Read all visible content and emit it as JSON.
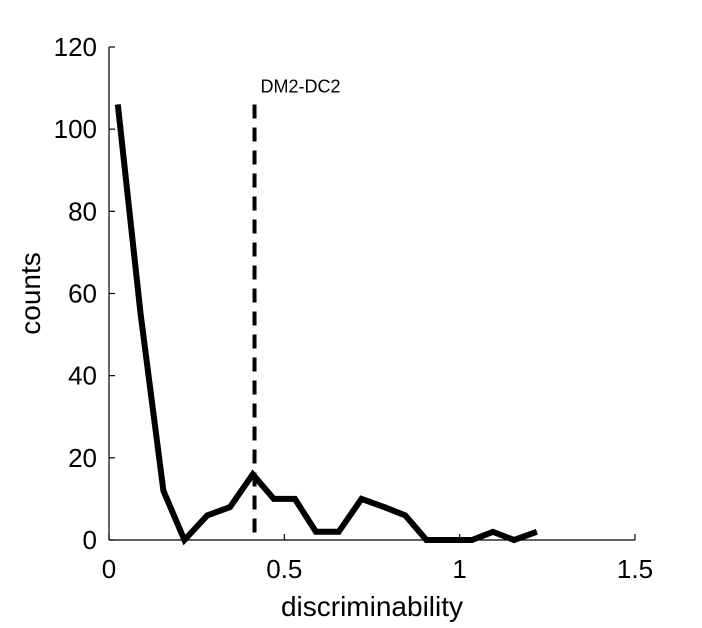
{
  "chart_data": {
    "type": "line",
    "xlabel": "discriminability",
    "ylabel": "counts",
    "xlim": [
      0,
      1.5
    ],
    "ylim": [
      0,
      120
    ],
    "xticks": [
      {
        "value": 0,
        "label": "0"
      },
      {
        "value": 0.5,
        "label": "0.5"
      },
      {
        "value": 1,
        "label": "1"
      },
      {
        "value": 1.5,
        "label": "1.5"
      }
    ],
    "yticks": [
      {
        "value": 0,
        "label": "0"
      },
      {
        "value": 20,
        "label": "20"
      },
      {
        "value": 40,
        "label": "40"
      },
      {
        "value": 60,
        "label": "60"
      },
      {
        "value": 80,
        "label": "80"
      },
      {
        "value": 100,
        "label": "100"
      },
      {
        "value": 120,
        "label": "120"
      }
    ],
    "series": [
      {
        "x": [
          0.025,
          0.09,
          0.155,
          0.215,
          0.28,
          0.345,
          0.41,
          0.47,
          0.53,
          0.59,
          0.655,
          0.72,
          0.785,
          0.845,
          0.905,
          0.97,
          1.035,
          1.095,
          1.155,
          1.22
        ],
        "values": [
          106,
          55,
          12,
          0,
          6,
          8,
          16,
          10,
          10,
          2,
          2,
          10,
          8,
          6,
          0,
          0,
          0,
          2,
          0,
          2
        ],
        "color": "#000000"
      }
    ],
    "annotations": [
      {
        "x": 0.415,
        "y": 106,
        "text": "DM2-DC2",
        "style": "dashed-vertical-line"
      }
    ],
    "grid": false
  }
}
